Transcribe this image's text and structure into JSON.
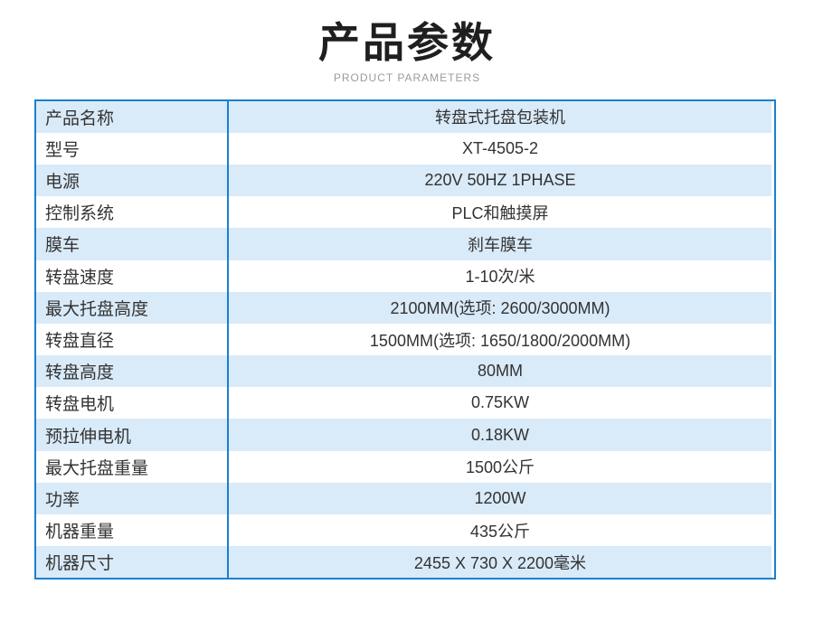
{
  "header": {
    "title": "产品参数",
    "subtitle": "PRODUCT PARAMETERS"
  },
  "table": {
    "rows": [
      {
        "label": "产品名称",
        "value": "转盘式托盘包装机"
      },
      {
        "label": "型号",
        "value": "XT-4505-2"
      },
      {
        "label": "电源",
        "value": "220V 50HZ 1PHASE"
      },
      {
        "label": "控制系统",
        "value": "PLC和触摸屏"
      },
      {
        "label": "膜车",
        "value": "刹车膜车"
      },
      {
        "label": "转盘速度",
        "value": "1-10次/米"
      },
      {
        "label": "最大托盘高度",
        "value": "2100MM(选项: 2600/3000MM)"
      },
      {
        "label": "转盘直径",
        "value": "1500MM(选项: 1650/1800/2000MM)"
      },
      {
        "label": "转盘高度",
        "value": "80MM"
      },
      {
        "label": "转盘电机",
        "value": "0.75KW"
      },
      {
        "label": "预拉伸电机",
        "value": "0.18KW"
      },
      {
        "label": "最大托盘重量",
        "value": "1500公斤"
      },
      {
        "label": "功率",
        "value": "1200W"
      },
      {
        "label": "机器重量",
        "value": "435公斤"
      },
      {
        "label": "机器尺寸",
        "value": "2455 X 730 X 2200毫米"
      }
    ]
  },
  "colors": {
    "border_blue": "#1a80d0",
    "row_alt_blue": "#d9eaf8",
    "row_white": "#ffffff",
    "title_black": "#1f1f1f",
    "subtitle_gray": "#9b9b9b",
    "text_color": "#333333"
  }
}
